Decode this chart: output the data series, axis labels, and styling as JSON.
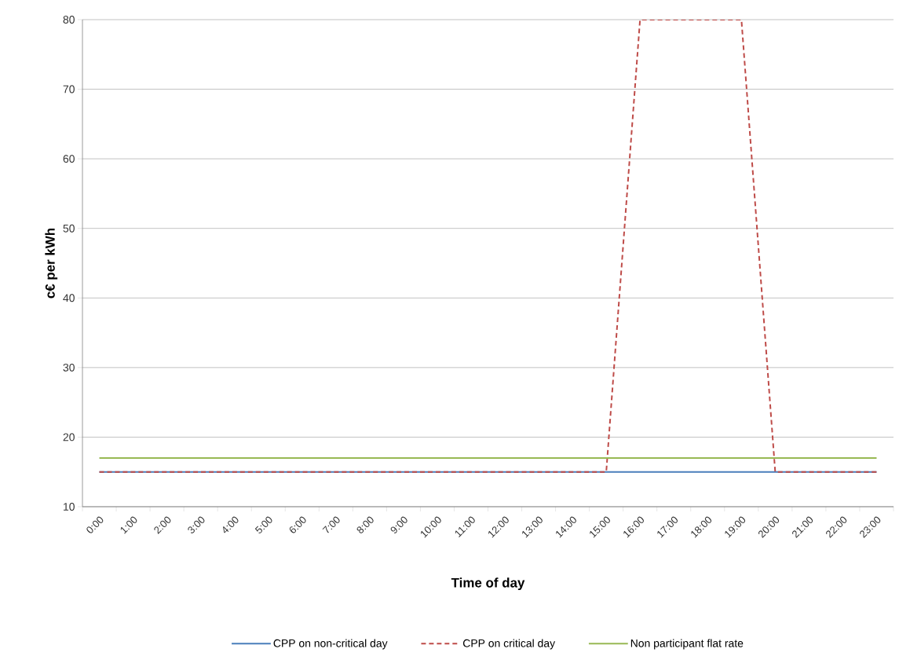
{
  "chart_data": {
    "type": "line",
    "xlabel": "Time of day",
    "ylabel": "c€ per kWh",
    "categories": [
      "0:00",
      "1:00",
      "2:00",
      "3:00",
      "4:00",
      "5:00",
      "6:00",
      "7:00",
      "8:00",
      "9:00",
      "10:00",
      "11:00",
      "12:00",
      "13:00",
      "14:00",
      "15:00",
      "16:00",
      "17:00",
      "18:00",
      "19:00",
      "20:00",
      "21:00",
      "22:00",
      "23:00"
    ],
    "series": [
      {
        "name": "CPP on non-critical day",
        "color": "#4a7ebb",
        "line_style": "solid",
        "values": [
          15,
          15,
          15,
          15,
          15,
          15,
          15,
          15,
          15,
          15,
          15,
          15,
          15,
          15,
          15,
          15,
          15,
          15,
          15,
          15,
          15,
          15,
          15,
          15
        ]
      },
      {
        "name": "CPP on critical day",
        "color": "#be4b48",
        "line_style": "dashed",
        "values": [
          15,
          15,
          15,
          15,
          15,
          15,
          15,
          15,
          15,
          15,
          15,
          15,
          15,
          15,
          15,
          15,
          80,
          80,
          80,
          80,
          15,
          15,
          15,
          15
        ]
      },
      {
        "name": "Non participant flat rate",
        "color": "#98b954",
        "line_style": "solid",
        "values": [
          17,
          17,
          17,
          17,
          17,
          17,
          17,
          17,
          17,
          17,
          17,
          17,
          17,
          17,
          17,
          17,
          17,
          17,
          17,
          17,
          17,
          17,
          17,
          17
        ]
      }
    ],
    "ylim": [
      10,
      80
    ],
    "yticks": [
      10,
      20,
      30,
      40,
      50,
      60,
      70,
      80
    ],
    "grid": "y",
    "legend": "bottom",
    "marker": "none"
  }
}
